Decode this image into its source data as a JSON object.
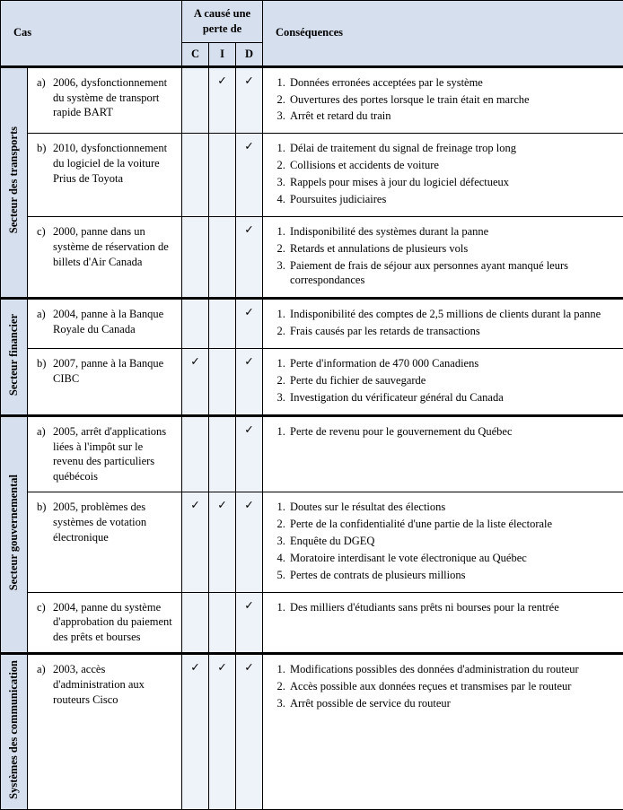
{
  "colors": {
    "header_bg": "#d6dfee",
    "mark_bg": "#eef2f9",
    "border": "#000000",
    "text": "#000000"
  },
  "columns": {
    "sector_w": 30,
    "case_w": 172,
    "cid_w": 30,
    "cons_w": 402
  },
  "headers": {
    "cas": "Cas",
    "cause": "A causé une perte de",
    "cons": "Conséquences",
    "c": "C",
    "i": "I",
    "d": "D"
  },
  "checkmark": "✓",
  "sectors": [
    {
      "label": "Secteur des transports",
      "rows": [
        {
          "letter": "a)",
          "case": "2006, dysfonctionnement du système de transport rapide BART",
          "c": false,
          "i": true,
          "d": true,
          "cons": [
            "Données erronées acceptées par le système",
            "Ouvertures des portes lorsque le train était en marche",
            "Arrêt et retard du train"
          ]
        },
        {
          "letter": "b)",
          "case": "2010, dysfonctionnement du logiciel de la voiture Prius de Toyota",
          "c": false,
          "i": false,
          "d": true,
          "cons": [
            "Délai de traitement du signal de freinage trop long",
            "Collisions et accidents de voiture",
            "Rappels pour mises à jour du logiciel défectueux",
            "Poursuites judiciaires"
          ]
        },
        {
          "letter": "c)",
          "case": "2000, panne dans un système de réservation de billets d'Air Canada",
          "c": false,
          "i": false,
          "d": true,
          "cons": [
            "Indisponibilité des systèmes durant la panne",
            "Retards et annulations de plusieurs vols",
            "Paiement de frais de séjour aux personnes ayant manqué leurs correspondances"
          ]
        }
      ]
    },
    {
      "label": "Secteur financier",
      "rows": [
        {
          "letter": "a)",
          "case": "2004, panne à la Banque Royale du Canada",
          "c": false,
          "i": false,
          "d": true,
          "cons": [
            "Indisponibilité des comptes de 2,5 millions de clients durant la panne",
            "Frais causés par les retards de transactions"
          ]
        },
        {
          "letter": "b)",
          "case": "2007, panne à la Banque CIBC",
          "c": true,
          "i": false,
          "d": true,
          "cons": [
            "Perte d'information de 470 000 Canadiens",
            "Perte du fichier de sauvegarde",
            "Investigation du vérificateur général du Canada"
          ]
        }
      ]
    },
    {
      "label": "Secteur gouvernemental",
      "rows": [
        {
          "letter": "a)",
          "case": "2005, arrêt d'applications liées à l'impôt sur le revenu des particuliers québécois",
          "c": false,
          "i": false,
          "d": true,
          "cons": [
            "Perte de revenu pour le gouvernement du Québec"
          ]
        },
        {
          "letter": "b)",
          "case": "2005, problèmes des systèmes de votation électronique",
          "c": true,
          "i": true,
          "d": true,
          "cons": [
            "Doutes sur le résultat des élections",
            "Perte de la confidentialité d'une partie de la liste électorale",
            "Enquête du DGEQ",
            "Moratoire interdisant le vote électronique au Québec",
            "Pertes de contrats de plusieurs millions"
          ]
        },
        {
          "letter": "c)",
          "case": "2004, panne du système d'approbation du paiement des prêts et bourses",
          "c": false,
          "i": false,
          "d": true,
          "cons": [
            "Des milliers d'étudiants sans prêts ni bourses pour la rentrée"
          ]
        }
      ]
    },
    {
      "label": "Systèmes des communication",
      "rows": [
        {
          "letter": "a)",
          "case": "2003, accès d'administration aux routeurs Cisco",
          "c": true,
          "i": true,
          "d": true,
          "cons": [
            "Modifications possibles des données d'administration du routeur",
            "Accès possible aux données reçues et transmises par le routeur",
            "Arrêt possible de service du routeur"
          ]
        }
      ]
    }
  ]
}
